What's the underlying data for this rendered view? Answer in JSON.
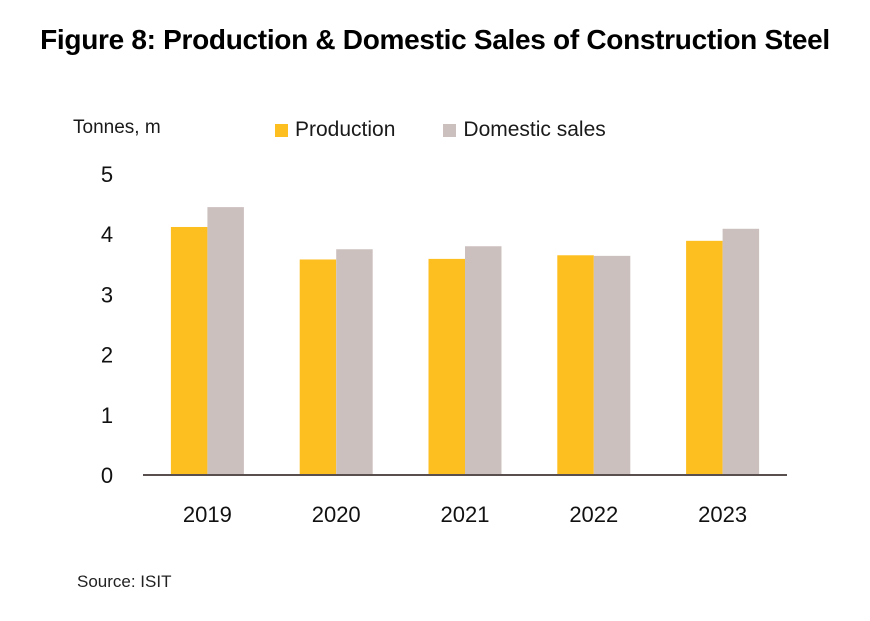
{
  "title": "Figure 8: Production & Domestic Sales of Construction Steel",
  "source": "Source: ISIT",
  "chart_data": {
    "type": "bar",
    "title": "Figure 8: Production & Domestic Sales of Construction Steel",
    "xlabel": "",
    "ylabel": "Tonnes, m",
    "ylim": [
      0,
      5
    ],
    "yticks": [
      0,
      1,
      2,
      3,
      4,
      5
    ],
    "grid": false,
    "legend_position": "top",
    "categories": [
      "2019",
      "2020",
      "2021",
      "2022",
      "2023"
    ],
    "series": [
      {
        "name": "Production",
        "color": "#FDBE20",
        "values": [
          4.12,
          3.58,
          3.59,
          3.65,
          3.89
        ]
      },
      {
        "name": "Domestic sales",
        "color": "#CCC0BF",
        "values": [
          4.45,
          3.75,
          3.8,
          3.64,
          4.09
        ]
      }
    ]
  }
}
